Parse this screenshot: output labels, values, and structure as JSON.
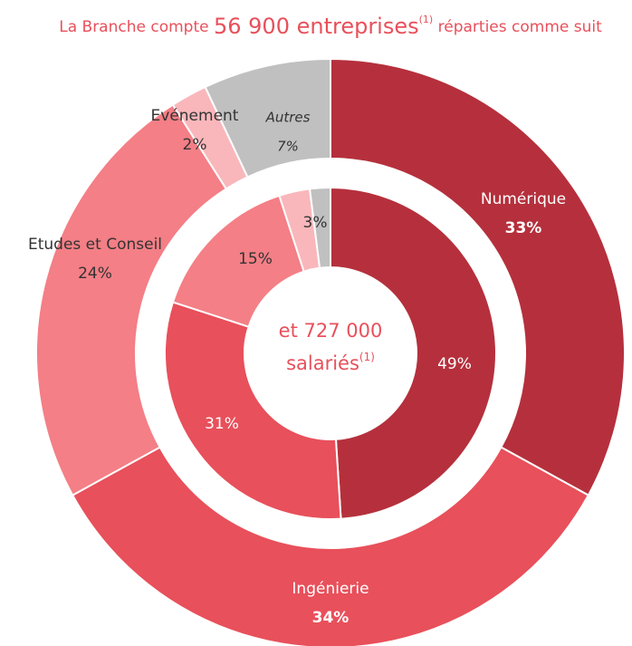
{
  "chart_data": {
    "type": "donut",
    "title": {
      "prefix": "La Branche compte",
      "highlight": "56 900 entreprises",
      "note": "(1)",
      "suffix": "réparties comme suit"
    },
    "center_label": {
      "value": "et 727 000",
      "unit": "salariés",
      "note": "(1)"
    },
    "categories": [
      "Numérique",
      "Ingénierie",
      "Etudes et Conseil",
      "Evénement",
      "Autres"
    ],
    "colors": [
      "#b5303c",
      "#e8505b",
      "#f47f86",
      "#f9b7bb",
      "#c0c0c0"
    ],
    "series": [
      {
        "values": [
          33,
          34,
          24,
          2,
          7
        ],
        "value_labels": [
          "33%",
          "34%",
          "24%",
          "2%",
          "7%"
        ]
      },
      {
        "values": [
          49,
          31,
          15,
          3,
          2
        ],
        "value_labels": [
          "49%",
          "31%",
          "15%",
          "3%",
          null
        ]
      }
    ]
  }
}
